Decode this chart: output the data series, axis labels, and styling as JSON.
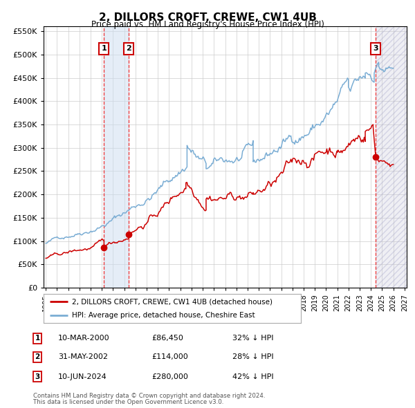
{
  "title": "2, DILLORS CROFT, CREWE, CW1 4UB",
  "subtitle": "Price paid vs. HM Land Registry's House Price Index (HPI)",
  "legend_line1": "2, DILLORS CROFT, CREWE, CW1 4UB (detached house)",
  "legend_line2": "HPI: Average price, detached house, Cheshire East",
  "sale_points": [
    {
      "label": "1",
      "date_str": "10-MAR-2000",
      "year": 2000.19,
      "price": 86450,
      "hpi_pct": "32% ↓ HPI"
    },
    {
      "label": "2",
      "date_str": "31-MAY-2002",
      "year": 2002.41,
      "price": 114000,
      "hpi_pct": "28% ↓ HPI"
    },
    {
      "label": "3",
      "date_str": "10-JUN-2024",
      "year": 2024.44,
      "price": 280000,
      "hpi_pct": "42% ↓ HPI"
    }
  ],
  "footnote1": "Contains HM Land Registry data © Crown copyright and database right 2024.",
  "footnote2": "This data is licensed under the Open Government Licence v3.0.",
  "hpi_color": "#7aadd4",
  "price_color": "#cc0000",
  "sale_color": "#cc0000",
  "vline_color": "#ee3333",
  "shade_color": "#ccddf0",
  "ylim": [
    0,
    560000
  ],
  "xlim_start": 1994.8,
  "xlim_end": 2027.2,
  "yticks": [
    0,
    50000,
    100000,
    150000,
    200000,
    250000,
    300000,
    350000,
    400000,
    450000,
    500000,
    550000
  ],
  "xticks": [
    1995,
    1996,
    1997,
    1998,
    1999,
    2000,
    2001,
    2002,
    2003,
    2004,
    2005,
    2006,
    2007,
    2008,
    2009,
    2010,
    2011,
    2012,
    2013,
    2014,
    2015,
    2016,
    2017,
    2018,
    2019,
    2020,
    2021,
    2022,
    2023,
    2024,
    2025,
    2026,
    2027
  ]
}
